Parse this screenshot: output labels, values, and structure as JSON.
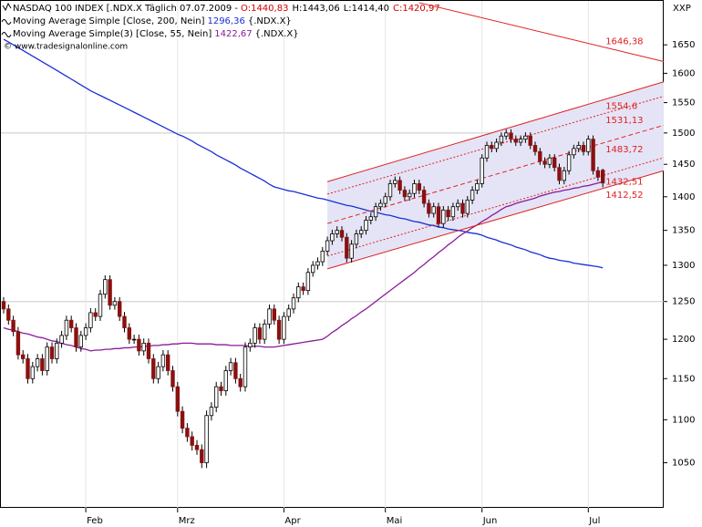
{
  "chart_data": {
    "type": "candlestick",
    "header": {
      "instrument": "NASDAQ 100 INDEX [.NDX.X  Täglich 07.07.2009 -",
      "quote": [
        "O:1440,83",
        "H:1443,06",
        "L:1414,40",
        "C:1420,97"
      ],
      "quote_colors": [
        "#d00000",
        "#000000",
        "#000000",
        "#d00000"
      ]
    },
    "watermark": "© www.tradesignalonline.com",
    "corner_label": "XXP",
    "categories": [
      null,
      null,
      null,
      null,
      null,
      null,
      null,
      null,
      null,
      null,
      null,
      null,
      null,
      null,
      null,
      null,
      null,
      "Feb",
      null,
      null,
      null,
      null,
      null,
      null,
      null,
      null,
      null,
      null,
      null,
      null,
      null,
      null,
      null,
      null,
      null,
      null,
      "Mrz",
      null,
      null,
      null,
      null,
      null,
      null,
      null,
      null,
      null,
      null,
      null,
      null,
      null,
      null,
      null,
      null,
      null,
      null,
      null,
      null,
      null,
      "Apr",
      null,
      null,
      null,
      null,
      null,
      null,
      null,
      null,
      null,
      null,
      null,
      null,
      null,
      null,
      null,
      null,
      null,
      null,
      null,
      null,
      "Mai",
      null,
      null,
      null,
      null,
      null,
      null,
      null,
      null,
      null,
      null,
      null,
      null,
      null,
      null,
      null,
      null,
      null,
      null,
      null,
      "Jun",
      null,
      null,
      null,
      null,
      null,
      null,
      null,
      null,
      null,
      null,
      null,
      null,
      null,
      null,
      null,
      null,
      null,
      null,
      null,
      null,
      null,
      "Jul",
      null,
      null,
      null
    ],
    "open": [
      1250,
      1240,
      1225,
      1210,
      1180,
      1175,
      1150,
      1165,
      1175,
      1160,
      1190,
      1175,
      1195,
      1205,
      1225,
      1215,
      1190,
      1205,
      1215,
      1235,
      1230,
      1260,
      1280,
      1245,
      1250,
      1230,
      1215,
      1200,
      1200,
      1185,
      1195,
      1175,
      1150,
      1165,
      1180,
      1160,
      1140,
      1110,
      1090,
      1080,
      1070,
      1065,
      1050,
      1105,
      1115,
      1140,
      1135,
      1160,
      1170,
      1150,
      1140,
      1190,
      1195,
      1215,
      1200,
      1220,
      1240,
      1225,
      1200,
      1230,
      1240,
      1255,
      1270,
      1265,
      1290,
      1300,
      1305,
      1320,
      1335,
      1345,
      1350,
      1340,
      1310,
      1330,
      1345,
      1350,
      1365,
      1370,
      1385,
      1390,
      1400,
      1420,
      1425,
      1410,
      1400,
      1405,
      1420,
      1410,
      1390,
      1375,
      1385,
      1360,
      1380,
      1370,
      1385,
      1390,
      1375,
      1395,
      1410,
      1420,
      1460,
      1480,
      1475,
      1485,
      1495,
      1500,
      1490,
      1485,
      1490,
      1495,
      1480,
      1470,
      1455,
      1450,
      1460,
      1445,
      1425,
      1440,
      1465,
      1475,
      1480,
      1470,
      1490,
      1440,
      1440.83
    ],
    "high": [
      1256,
      1246,
      1231,
      1216,
      1186,
      1181,
      1171,
      1181,
      1181,
      1196,
      1196,
      1201,
      1211,
      1231,
      1231,
      1221,
      1211,
      1221,
      1241,
      1241,
      1266,
      1286,
      1286,
      1256,
      1256,
      1236,
      1221,
      1206,
      1206,
      1201,
      1201,
      1181,
      1171,
      1186,
      1186,
      1166,
      1146,
      1116,
      1096,
      1086,
      1076,
      1071,
      1111,
      1121,
      1146,
      1146,
      1166,
      1176,
      1176,
      1156,
      1196,
      1201,
      1221,
      1221,
      1226,
      1246,
      1246,
      1231,
      1236,
      1246,
      1261,
      1276,
      1276,
      1296,
      1306,
      1311,
      1326,
      1341,
      1351,
      1356,
      1356,
      1346,
      1336,
      1351,
      1356,
      1371,
      1376,
      1391,
      1396,
      1406,
      1426,
      1431,
      1431,
      1416,
      1411,
      1426,
      1426,
      1416,
      1396,
      1391,
      1391,
      1386,
      1386,
      1391,
      1396,
      1396,
      1401,
      1416,
      1426,
      1466,
      1486,
      1486,
      1491,
      1501,
      1506,
      1506,
      1496,
      1496,
      1501,
      1501,
      1486,
      1476,
      1461,
      1466,
      1466,
      1451,
      1446,
      1471,
      1481,
      1486,
      1486,
      1496,
      1496,
      1446,
      1443.06
    ],
    "low": [
      1234,
      1219,
      1204,
      1174,
      1169,
      1144,
      1144,
      1159,
      1154,
      1154,
      1169,
      1169,
      1189,
      1199,
      1209,
      1184,
      1184,
      1199,
      1209,
      1224,
      1224,
      1254,
      1239,
      1239,
      1224,
      1209,
      1194,
      1194,
      1179,
      1179,
      1169,
      1144,
      1144,
      1159,
      1154,
      1134,
      1104,
      1084,
      1074,
      1064,
      1059,
      1044,
      1044,
      1099,
      1109,
      1129,
      1129,
      1154,
      1144,
      1134,
      1134,
      1184,
      1189,
      1194,
      1194,
      1214,
      1219,
      1194,
      1194,
      1224,
      1234,
      1249,
      1259,
      1259,
      1284,
      1294,
      1299,
      1314,
      1329,
      1339,
      1334,
      1304,
      1304,
      1324,
      1339,
      1344,
      1359,
      1364,
      1379,
      1384,
      1394,
      1414,
      1404,
      1394,
      1394,
      1399,
      1404,
      1384,
      1369,
      1369,
      1354,
      1354,
      1364,
      1364,
      1379,
      1369,
      1369,
      1389,
      1404,
      1414,
      1454,
      1469,
      1469,
      1479,
      1489,
      1484,
      1479,
      1479,
      1484,
      1474,
      1464,
      1449,
      1444,
      1444,
      1439,
      1419,
      1419,
      1434,
      1459,
      1469,
      1464,
      1464,
      1434,
      1424,
      1414.4
    ],
    "close": [
      1240,
      1225,
      1210,
      1180,
      1175,
      1150,
      1165,
      1175,
      1160,
      1190,
      1175,
      1195,
      1205,
      1225,
      1215,
      1190,
      1205,
      1215,
      1235,
      1230,
      1260,
      1280,
      1245,
      1250,
      1230,
      1215,
      1200,
      1200,
      1185,
      1195,
      1175,
      1150,
      1165,
      1180,
      1160,
      1140,
      1110,
      1090,
      1080,
      1070,
      1065,
      1050,
      1105,
      1115,
      1140,
      1135,
      1160,
      1170,
      1150,
      1140,
      1190,
      1195,
      1215,
      1200,
      1220,
      1240,
      1225,
      1200,
      1230,
      1240,
      1255,
      1270,
      1265,
      1290,
      1300,
      1305,
      1320,
      1335,
      1345,
      1350,
      1340,
      1310,
      1330,
      1345,
      1350,
      1365,
      1370,
      1385,
      1390,
      1400,
      1420,
      1425,
      1410,
      1400,
      1405,
      1420,
      1410,
      1390,
      1375,
      1385,
      1360,
      1380,
      1370,
      1385,
      1390,
      1375,
      1395,
      1410,
      1420,
      1460,
      1480,
      1475,
      1485,
      1495,
      1500,
      1490,
      1485,
      1490,
      1495,
      1480,
      1470,
      1455,
      1450,
      1460,
      1445,
      1425,
      1440,
      1465,
      1475,
      1480,
      1470,
      1490,
      1440,
      1430,
      1420.97
    ],
    "up_color": "#ffffff",
    "down_color": "#8b1010",
    "series": [
      {
        "name": "Moving Average Simple [Close, 200, Nein]",
        "value_label": "1296,36",
        "suffix": "{.NDX.X}",
        "color": "#1a2fd6",
        "values": [
          1660,
          1655,
          1650,
          1645,
          1640,
          1635,
          1630,
          1625,
          1620,
          1615,
          1610,
          1605,
          1600,
          1595,
          1590,
          1585,
          1580,
          1575,
          1570,
          1566,
          1562,
          1558,
          1554,
          1550,
          1546,
          1542,
          1538,
          1534,
          1530,
          1526,
          1522,
          1518,
          1514,
          1510,
          1506,
          1502,
          1498,
          1495,
          1491,
          1487,
          1482,
          1478,
          1474,
          1470,
          1465,
          1461,
          1457,
          1453,
          1449,
          1444,
          1440,
          1436,
          1432,
          1428,
          1424,
          1419,
          1415,
          1413,
          1411,
          1409,
          1408,
          1406,
          1404,
          1402,
          1400,
          1398,
          1397,
          1395,
          1393,
          1391,
          1389,
          1387,
          1386,
          1384,
          1382,
          1380,
          1378,
          1377,
          1375,
          1373,
          1372,
          1370,
          1368,
          1367,
          1365,
          1363,
          1362,
          1360,
          1358,
          1357,
          1355,
          1354,
          1352,
          1351,
          1350,
          1349,
          1347,
          1346,
          1345,
          1343,
          1340,
          1338,
          1336,
          1333,
          1331,
          1329,
          1326,
          1324,
          1322,
          1319,
          1317,
          1315,
          1312,
          1310,
          1309,
          1307,
          1306,
          1305,
          1303,
          1302,
          1301,
          1300,
          1299,
          1298,
          1296.36
        ]
      },
      {
        "name": "Moving Average Simple(3) [Close, 55, Nein]",
        "value_label": "1422,67",
        "suffix": "{.NDX.X}",
        "color": "#8a1a9a",
        "values": [
          1215,
          1213,
          1212,
          1210,
          1208,
          1207,
          1205,
          1203,
          1202,
          1200,
          1198,
          1197,
          1195,
          1193,
          1192,
          1190,
          1188,
          1187,
          1185,
          1186,
          1186,
          1187,
          1187,
          1188,
          1188,
          1189,
          1189,
          1190,
          1190,
          1191,
          1191,
          1192,
          1192,
          1193,
          1193,
          1194,
          1194,
          1195,
          1195,
          1195,
          1194,
          1194,
          1194,
          1194,
          1193,
          1193,
          1193,
          1192,
          1192,
          1192,
          1192,
          1191,
          1191,
          1191,
          1190,
          1190,
          1190,
          1191,
          1192,
          1193,
          1194,
          1195,
          1196,
          1197,
          1198,
          1199,
          1200,
          1204,
          1209,
          1213,
          1218,
          1222,
          1227,
          1231,
          1236,
          1240,
          1245,
          1250,
          1255,
          1260,
          1265,
          1270,
          1275,
          1280,
          1285,
          1290,
          1296,
          1301,
          1307,
          1312,
          1318,
          1323,
          1329,
          1334,
          1340,
          1345,
          1349,
          1354,
          1358,
          1363,
          1367,
          1372,
          1376,
          1381,
          1385,
          1387,
          1390,
          1392,
          1394,
          1396,
          1398,
          1401,
          1403,
          1405,
          1407,
          1408,
          1410,
          1411,
          1413,
          1414,
          1416,
          1417,
          1419,
          1421,
          1422.67
        ]
      }
    ],
    "log_scale": true,
    "ylim": [
      1000,
      1732
    ],
    "yticks": [
      1050,
      1100,
      1150,
      1200,
      1250,
      1300,
      1350,
      1400,
      1450,
      1500,
      1550,
      1600,
      1650
    ],
    "hlines": [
      1250,
      1500
    ],
    "hline_color": "#c8c8c8",
    "trendline": {
      "start_index": 86,
      "start_value": 1727,
      "value": 1646.38,
      "label": "1646,38",
      "color": "#e02020"
    },
    "channel": {
      "start_index": 67,
      "fill": "#e4e4f6",
      "color": "#e02020",
      "lines": [
        {
          "start_value": 1423,
          "value": 1554.6,
          "label": "1554,6",
          "style": "solid"
        },
        {
          "start_value": 1404,
          "value": 1531.13,
          "label": "1531,13",
          "style": "dotted"
        },
        {
          "start_value": 1360,
          "value": 1483.72,
          "label": "1483,72",
          "style": "dashed"
        },
        {
          "start_value": 1313,
          "value": 1432.51,
          "label": "1432,51",
          "style": "dotted"
        },
        {
          "start_value": 1295,
          "value": 1412.52,
          "label": "1412,52",
          "style": "solid"
        }
      ]
    }
  }
}
